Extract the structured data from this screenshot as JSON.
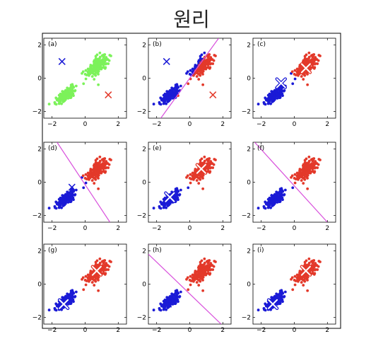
{
  "title": "원리",
  "colors": {
    "green": "#7cf25a",
    "blue": "#1a1ad6",
    "red": "#e3392a",
    "line": "#d84fdc"
  },
  "chart_data": [
    {
      "type": "scatter",
      "label": "(a)",
      "xlim": [
        -2.5,
        2.5
      ],
      "ylim": [
        -2.4,
        2.4
      ],
      "xticks": [
        -2,
        0,
        2
      ],
      "yticks": [
        -2,
        0,
        2
      ],
      "points": "green",
      "centers": [
        {
          "color": "blue",
          "x": -1.4,
          "y": 1.0,
          "style": "plain"
        },
        {
          "color": "red",
          "x": 1.4,
          "y": -1.0,
          "style": "plain"
        }
      ],
      "boundary": null
    },
    {
      "type": "scatter",
      "label": "(b)",
      "xlim": [
        -2.5,
        2.5
      ],
      "ylim": [
        -2.4,
        2.4
      ],
      "xticks": [
        -2,
        0,
        2
      ],
      "yticks": [
        -2,
        0,
        2
      ],
      "points": "split",
      "centers": [
        {
          "color": "blue",
          "x": -1.4,
          "y": 1.0,
          "style": "plain"
        },
        {
          "color": "red",
          "x": 1.4,
          "y": -1.0,
          "style": "plain"
        }
      ],
      "boundary": [
        [
          -1.75,
          -2.4
        ],
        [
          1.75,
          2.4
        ]
      ]
    },
    {
      "type": "scatter",
      "label": "(c)",
      "xlim": [
        -2.5,
        2.5
      ],
      "ylim": [
        -2.4,
        2.4
      ],
      "xticks": [
        -2,
        0,
        2
      ],
      "yticks": [
        -2,
        0,
        2
      ],
      "points": "split",
      "centers": [
        {
          "color": "blue",
          "x": -0.8,
          "y": -0.3,
          "style": "outlined"
        },
        {
          "color": "red",
          "x": 0.7,
          "y": 0.6,
          "style": "outlined"
        }
      ],
      "boundary": null
    },
    {
      "type": "scatter",
      "label": "(d)",
      "xlim": [
        -2.5,
        2.5
      ],
      "ylim": [
        -2.4,
        2.4
      ],
      "xticks": [
        -2,
        0,
        2
      ],
      "yticks": [
        -2,
        0,
        2
      ],
      "points": "split",
      "centers": [
        {
          "color": "blue",
          "x": -0.8,
          "y": -0.3,
          "style": "plain"
        },
        {
          "color": "red",
          "x": 0.7,
          "y": 0.6,
          "style": "plain"
        }
      ],
      "boundary": [
        [
          -1.7,
          2.4
        ],
        [
          1.5,
          -2.4
        ]
      ]
    },
    {
      "type": "scatter",
      "label": "(e)",
      "xlim": [
        -2.5,
        2.5
      ],
      "ylim": [
        -2.4,
        2.4
      ],
      "xticks": [
        -2,
        0,
        2
      ],
      "yticks": [
        -2,
        0,
        2
      ],
      "points": "split",
      "centers": [
        {
          "color": "blue",
          "x": -1.2,
          "y": -0.9,
          "style": "outlined"
        },
        {
          "color": "red",
          "x": 0.7,
          "y": 0.8,
          "style": "outlined"
        }
      ],
      "boundary": null
    },
    {
      "type": "scatter",
      "label": "(f)",
      "xlim": [
        -2.5,
        2.5
      ],
      "ylim": [
        -2.4,
        2.4
      ],
      "xticks": [
        -2,
        0,
        2
      ],
      "yticks": [
        -2,
        0,
        2
      ],
      "points": "split",
      "centers": [
        {
          "color": "blue",
          "x": -1.2,
          "y": -0.9,
          "style": "plain"
        },
        {
          "color": "red",
          "x": 0.7,
          "y": 0.8,
          "style": "plain"
        }
      ],
      "boundary": [
        [
          -2.4,
          2.4
        ],
        [
          2.0,
          -2.4
        ]
      ]
    },
    {
      "type": "scatter",
      "label": "(g)",
      "xlim": [
        -2.5,
        2.5
      ],
      "ylim": [
        -2.4,
        2.4
      ],
      "xticks": [
        -2,
        0,
        2
      ],
      "yticks": [
        -2,
        0,
        2
      ],
      "points": "split",
      "centers": [
        {
          "color": "blue",
          "x": -1.3,
          "y": -1.2,
          "style": "outlined"
        },
        {
          "color": "red",
          "x": 0.7,
          "y": 0.8,
          "style": "outlined"
        }
      ],
      "boundary": null
    },
    {
      "type": "scatter",
      "label": "(h)",
      "xlim": [
        -2.5,
        2.5
      ],
      "ylim": [
        -2.4,
        2.4
      ],
      "xticks": [
        -2,
        0,
        2
      ],
      "yticks": [
        -2,
        0,
        2
      ],
      "points": "split",
      "centers": [
        {
          "color": "blue",
          "x": -1.3,
          "y": -1.2,
          "style": "plain"
        },
        {
          "color": "red",
          "x": 0.7,
          "y": 0.8,
          "style": "plain"
        }
      ],
      "boundary": [
        [
          -2.5,
          1.8
        ],
        [
          1.9,
          -2.4
        ]
      ]
    },
    {
      "type": "scatter",
      "label": "(i)",
      "xlim": [
        -2.5,
        2.5
      ],
      "ylim": [
        -2.4,
        2.4
      ],
      "xticks": [
        -2,
        0,
        2
      ],
      "yticks": [
        -2,
        0,
        2
      ],
      "points": "split",
      "centers": [
        {
          "color": "blue",
          "x": -1.3,
          "y": -1.2,
          "style": "outlined"
        },
        {
          "color": "red",
          "x": 0.7,
          "y": 0.8,
          "style": "outlined"
        }
      ],
      "boundary": null
    }
  ]
}
